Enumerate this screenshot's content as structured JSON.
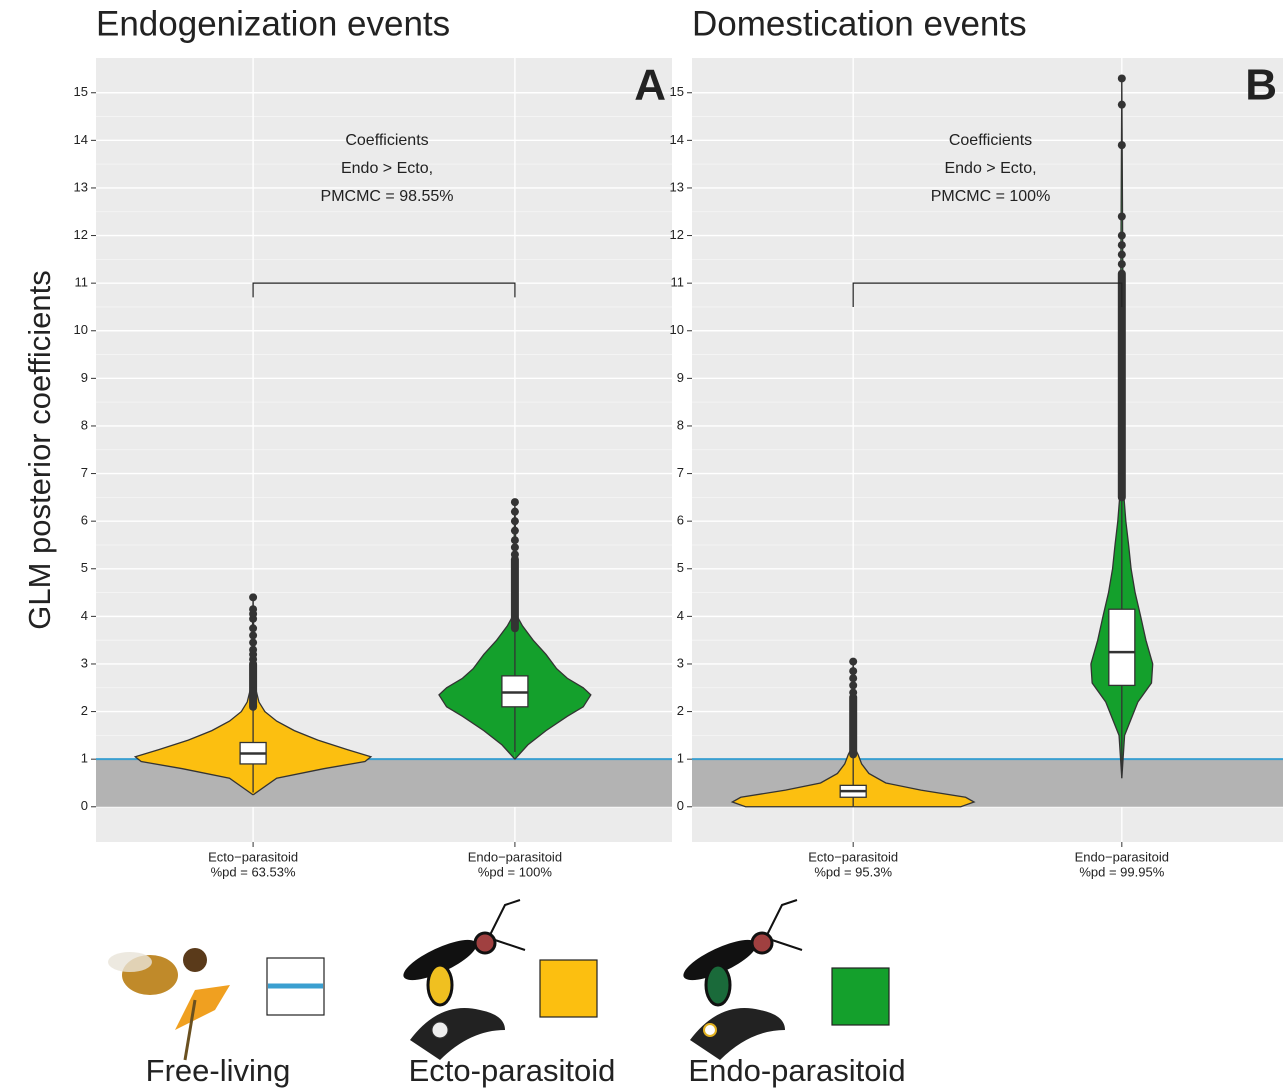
{
  "y_axis_label": "GLM posterior coefficients",
  "chart_data": [
    {
      "type": "violin",
      "title": "Endogenization events",
      "panel_label": "A",
      "annotation": [
        "Coefficients",
        "Endo > Ecto,",
        "PMCMC = 98.55%"
      ],
      "ylim": [
        -0.74,
        15.73
      ],
      "yticks": [
        0,
        1,
        2,
        3,
        4,
        5,
        6,
        7,
        8,
        9,
        10,
        11,
        12,
        13,
        14,
        15
      ],
      "grid": true,
      "reference_line": 1,
      "reference_color": "#3a9fd0",
      "shade_from": 0,
      "bracket_y": 11,
      "bracket_ends": 10.7,
      "categories": [
        "Ecto−parasitoid",
        "Endo−parasitoid"
      ],
      "category_notes": [
        "%pd = 63.53%",
        "%pd = 100%"
      ],
      "series": [
        {
          "color": "#fcbf10",
          "violin": {
            "y": [
              0.25,
              0.6,
              0.8,
              0.95,
              1.05,
              1.2,
              1.4,
              1.6,
              1.8,
              2.0,
              2.2,
              2.5,
              3,
              4.4
            ],
            "width": [
              0,
              0.2,
              0.6,
              0.95,
              1,
              0.8,
              0.55,
              0.35,
              0.2,
              0.1,
              0.05,
              0.02,
              0.01,
              0
            ]
          },
          "max_width": 0.45,
          "box": {
            "whisker_low": 0.3,
            "q1": 0.9,
            "median": 1.12,
            "q3": 1.35,
            "whisker_high": 2.1
          },
          "outlier_span": [
            2.1,
            3.0
          ],
          "outliers": [
            3.1,
            3.2,
            3.3,
            3.45,
            3.6,
            3.75,
            3.95,
            4.05,
            4.15,
            4.4
          ]
        },
        {
          "color": "#14a02c",
          "violin": {
            "y": [
              1.0,
              1.3,
              1.6,
              1.9,
              2.1,
              2.35,
              2.5,
              2.7,
              2.9,
              3.2,
              3.5,
              3.8,
              4.0,
              6.4
            ],
            "width": [
              0,
              0.17,
              0.41,
              0.69,
              0.9,
              1,
              0.9,
              0.69,
              0.55,
              0.41,
              0.24,
              0.1,
              0.03,
              0
            ]
          },
          "max_width": 0.29,
          "box": {
            "whisker_low": 1.15,
            "q1": 2.1,
            "median": 2.4,
            "q3": 2.75,
            "whisker_high": 3.75
          },
          "outlier_span": [
            3.75,
            5.2
          ],
          "outliers": [
            5.3,
            5.45,
            5.6,
            5.8,
            6.0,
            6.2,
            6.4
          ]
        }
      ]
    },
    {
      "type": "violin",
      "title": "Domestication events",
      "panel_label": "B",
      "annotation": [
        "Coefficients",
        "Endo > Ecto,",
        "PMCMC = 100%"
      ],
      "ylim": [
        -0.74,
        15.73
      ],
      "yticks": [
        0,
        1,
        2,
        3,
        4,
        5,
        6,
        7,
        8,
        9,
        10,
        11,
        12,
        13,
        14,
        15
      ],
      "grid": true,
      "reference_line": 1,
      "reference_color": "#3a9fd0",
      "shade_from": 0,
      "bracket_y": 11,
      "bracket_ends": 10.5,
      "categories": [
        "Ecto−parasitoid",
        "Endo−parasitoid"
      ],
      "category_notes": [
        "%pd = 95.3%",
        "%pd = 99.95%"
      ],
      "series": [
        {
          "color": "#fcbf10",
          "violin": {
            "y": [
              0,
              0.1,
              0.2,
              0.35,
              0.5,
              0.7,
              0.9,
              1.1,
              1.2,
              3.05
            ],
            "width": [
              0.89,
              1,
              0.93,
              0.56,
              0.27,
              0.13,
              0.07,
              0.04,
              0.02,
              0
            ]
          },
          "max_width": 0.45,
          "box": {
            "whisker_low": 0,
            "q1": 0.2,
            "median": 0.33,
            "q3": 0.45,
            "whisker_high": 1.1
          },
          "outlier_span": [
            1.1,
            2.3
          ],
          "outliers": [
            2.4,
            2.55,
            2.7,
            2.85,
            3.05
          ]
        },
        {
          "color": "#14a02c",
          "violin": {
            "y": [
              0.6,
              1.5,
              2.2,
              2.6,
              3.0,
              3.5,
              4.0,
              4.5,
              5.0,
              5.5,
              6.0,
              6.5,
              15.3
            ],
            "width": [
              0,
              0.09,
              0.52,
              0.96,
              1,
              0.78,
              0.61,
              0.43,
              0.3,
              0.22,
              0.13,
              0.07,
              0
            ]
          },
          "max_width": 0.115,
          "box": {
            "whisker_low": 0.75,
            "q1": 2.55,
            "median": 3.25,
            "q3": 4.15,
            "whisker_high": 6.5
          },
          "outlier_span": [
            6.5,
            11.2
          ],
          "outliers": [
            11.4,
            11.6,
            11.8,
            12.0,
            12.4,
            13.9,
            14.75,
            15.3
          ]
        }
      ]
    }
  ],
  "legend": [
    {
      "label": "Free-living",
      "color": "#ffffff",
      "line_color": "#3a9fd0"
    },
    {
      "label": "Ecto-parasitoid",
      "color": "#fcbf10"
    },
    {
      "label": "Endo-parasitoid",
      "color": "#14a02c"
    }
  ]
}
